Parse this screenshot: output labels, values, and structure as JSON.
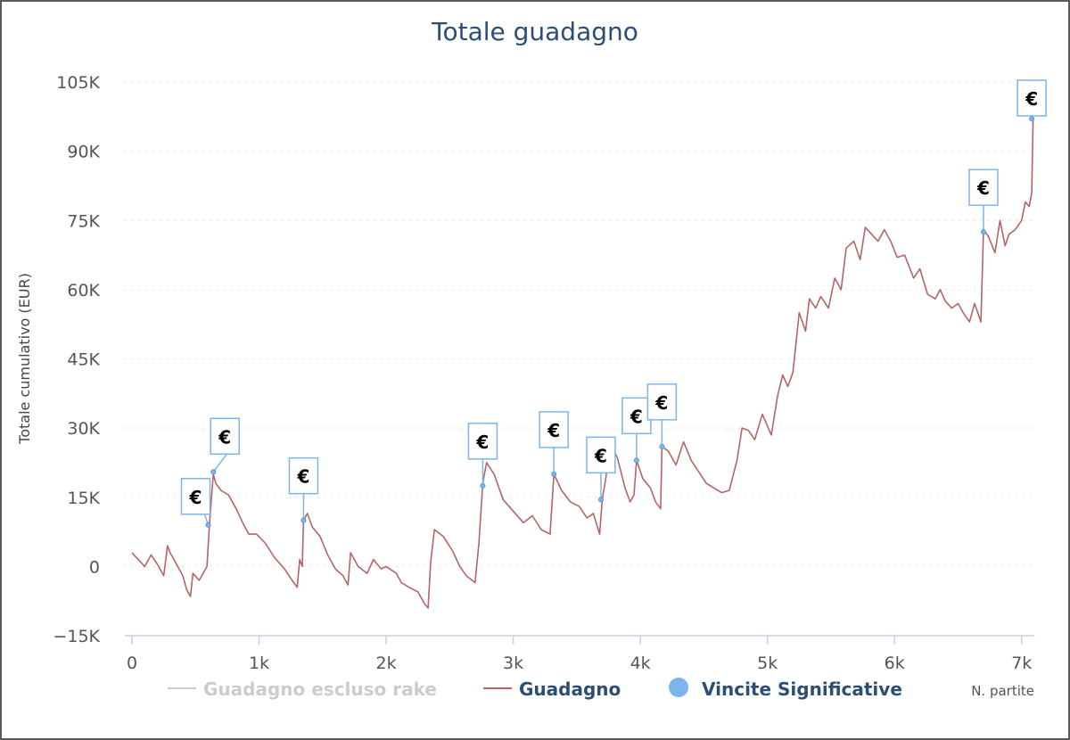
{
  "chart_data": {
    "type": "line",
    "title": "Totale guadagno",
    "ylabel": "Totale cumulativo (EUR)",
    "xlabel": "N. partite",
    "xlim": [
      0,
      7100
    ],
    "ylim": [
      -15000,
      105000
    ],
    "x_ticks": [
      {
        "value": 0,
        "label": "0"
      },
      {
        "value": 1000,
        "label": "1k"
      },
      {
        "value": 2000,
        "label": "2k"
      },
      {
        "value": 3000,
        "label": "3k"
      },
      {
        "value": 4000,
        "label": "4k"
      },
      {
        "value": 5000,
        "label": "5k"
      },
      {
        "value": 6000,
        "label": "6k"
      },
      {
        "value": 7000,
        "label": "7k"
      }
    ],
    "y_ticks": [
      {
        "value": -15000,
        "label": "−15K"
      },
      {
        "value": 0,
        "label": "0"
      },
      {
        "value": 15000,
        "label": "15K"
      },
      {
        "value": 30000,
        "label": "30K"
      },
      {
        "value": 45000,
        "label": "45K"
      },
      {
        "value": 60000,
        "label": "60K"
      },
      {
        "value": 75000,
        "label": "75K"
      },
      {
        "value": 90000,
        "label": "90K"
      },
      {
        "value": 105000,
        "label": "105K"
      }
    ],
    "grid": true,
    "legend_position": "bottom",
    "series": [
      {
        "name": "Guadagno escluso rake",
        "color": "#cccccc",
        "hidden": true,
        "points": []
      },
      {
        "name": "Guadagno",
        "color": "#b56565",
        "points": [
          [
            0,
            3000
          ],
          [
            50,
            1500
          ],
          [
            100,
            0
          ],
          [
            150,
            2500
          ],
          [
            200,
            500
          ],
          [
            250,
            -2000
          ],
          [
            280,
            4500
          ],
          [
            300,
            3000
          ],
          [
            350,
            500
          ],
          [
            400,
            -2000
          ],
          [
            430,
            -5000
          ],
          [
            460,
            -6500
          ],
          [
            480,
            -1500
          ],
          [
            530,
            -3000
          ],
          [
            560,
            -1500
          ],
          [
            590,
            0
          ],
          [
            610,
            9000
          ],
          [
            640,
            20000
          ],
          [
            660,
            18000
          ],
          [
            700,
            16500
          ],
          [
            760,
            15500
          ],
          [
            820,
            12500
          ],
          [
            880,
            9000
          ],
          [
            920,
            7000
          ],
          [
            980,
            7000
          ],
          [
            1050,
            5000
          ],
          [
            1120,
            2000
          ],
          [
            1200,
            -500
          ],
          [
            1260,
            -3000
          ],
          [
            1300,
            -4500
          ],
          [
            1320,
            1500
          ],
          [
            1340,
            0
          ],
          [
            1350,
            10000
          ],
          [
            1380,
            11500
          ],
          [
            1420,
            8500
          ],
          [
            1480,
            6500
          ],
          [
            1540,
            2500
          ],
          [
            1600,
            -500
          ],
          [
            1660,
            -2000
          ],
          [
            1700,
            -4000
          ],
          [
            1720,
            3000
          ],
          [
            1780,
            0
          ],
          [
            1850,
            -1500
          ],
          [
            1900,
            1500
          ],
          [
            1960,
            -500
          ],
          [
            2000,
            0
          ],
          [
            2080,
            -1500
          ],
          [
            2120,
            -3500
          ],
          [
            2180,
            -4500
          ],
          [
            2250,
            -5500
          ],
          [
            2300,
            -8000
          ],
          [
            2330,
            -9000
          ],
          [
            2350,
            1000
          ],
          [
            2380,
            8000
          ],
          [
            2450,
            6500
          ],
          [
            2520,
            3500
          ],
          [
            2580,
            0
          ],
          [
            2630,
            -2000
          ],
          [
            2700,
            -3500
          ],
          [
            2730,
            5000
          ],
          [
            2760,
            18000
          ],
          [
            2790,
            22500
          ],
          [
            2850,
            20000
          ],
          [
            2920,
            14500
          ],
          [
            3000,
            12000
          ],
          [
            3080,
            9500
          ],
          [
            3150,
            11000
          ],
          [
            3220,
            8000
          ],
          [
            3290,
            7000
          ],
          [
            3320,
            20000
          ],
          [
            3380,
            16500
          ],
          [
            3450,
            14000
          ],
          [
            3520,
            13000
          ],
          [
            3580,
            10500
          ],
          [
            3630,
            11500
          ],
          [
            3680,
            7000
          ],
          [
            3700,
            14500
          ],
          [
            3730,
            19500
          ],
          [
            3760,
            27000
          ],
          [
            3820,
            23500
          ],
          [
            3880,
            17000
          ],
          [
            3920,
            14000
          ],
          [
            3950,
            15500
          ],
          [
            3970,
            23000
          ],
          [
            4020,
            19000
          ],
          [
            4080,
            17000
          ],
          [
            4120,
            14000
          ],
          [
            4160,
            12500
          ],
          [
            4170,
            26000
          ],
          [
            4220,
            25000
          ],
          [
            4280,
            22000
          ],
          [
            4340,
            27000
          ],
          [
            4400,
            23000
          ],
          [
            4460,
            20500
          ],
          [
            4520,
            18000
          ],
          [
            4580,
            17000
          ],
          [
            4640,
            16000
          ],
          [
            4700,
            16500
          ],
          [
            4760,
            23000
          ],
          [
            4800,
            30000
          ],
          [
            4850,
            29500
          ],
          [
            4900,
            27500
          ],
          [
            4960,
            33000
          ],
          [
            5030,
            28500
          ],
          [
            5080,
            37000
          ],
          [
            5120,
            41500
          ],
          [
            5160,
            39000
          ],
          [
            5200,
            42000
          ],
          [
            5250,
            55000
          ],
          [
            5300,
            51000
          ],
          [
            5330,
            58000
          ],
          [
            5380,
            56000
          ],
          [
            5420,
            58500
          ],
          [
            5480,
            56000
          ],
          [
            5530,
            62500
          ],
          [
            5580,
            60000
          ],
          [
            5620,
            69000
          ],
          [
            5680,
            70500
          ],
          [
            5730,
            66500
          ],
          [
            5770,
            73500
          ],
          [
            5820,
            72000
          ],
          [
            5870,
            70500
          ],
          [
            5920,
            73000
          ],
          [
            5970,
            70500
          ],
          [
            6020,
            67000
          ],
          [
            6080,
            67500
          ],
          [
            6150,
            62500
          ],
          [
            6200,
            64500
          ],
          [
            6260,
            59000
          ],
          [
            6320,
            58000
          ],
          [
            6360,
            60000
          ],
          [
            6400,
            57500
          ],
          [
            6450,
            56000
          ],
          [
            6500,
            57000
          ],
          [
            6540,
            55000
          ],
          [
            6590,
            53000
          ],
          [
            6630,
            57000
          ],
          [
            6680,
            53000
          ],
          [
            6700,
            73000
          ],
          [
            6740,
            71500
          ],
          [
            6790,
            68000
          ],
          [
            6830,
            75000
          ],
          [
            6870,
            69500
          ],
          [
            6900,
            72000
          ],
          [
            6950,
            73000
          ],
          [
            7000,
            75000
          ],
          [
            7030,
            79000
          ],
          [
            7060,
            78000
          ],
          [
            7080,
            81000
          ],
          [
            7090,
            97000
          ]
        ]
      }
    ],
    "markers": {
      "name": "Vincite Significative",
      "color": "#7cb5ec",
      "symbol": "€",
      "points": [
        {
          "x": 600,
          "y": 9000,
          "side": "left"
        },
        {
          "x": 640,
          "y": 20500,
          "side": "right"
        },
        {
          "x": 1350,
          "y": 10000,
          "side": "center"
        },
        {
          "x": 2760,
          "y": 17500,
          "side": "center"
        },
        {
          "x": 3320,
          "y": 20000,
          "side": "center"
        },
        {
          "x": 3690,
          "y": 14500,
          "side": "center"
        },
        {
          "x": 3970,
          "y": 23000,
          "side": "center"
        },
        {
          "x": 4170,
          "y": 26000,
          "side": "center"
        },
        {
          "x": 6700,
          "y": 72500,
          "side": "center"
        },
        {
          "x": 7080,
          "y": 97000,
          "side": "center"
        }
      ]
    }
  }
}
